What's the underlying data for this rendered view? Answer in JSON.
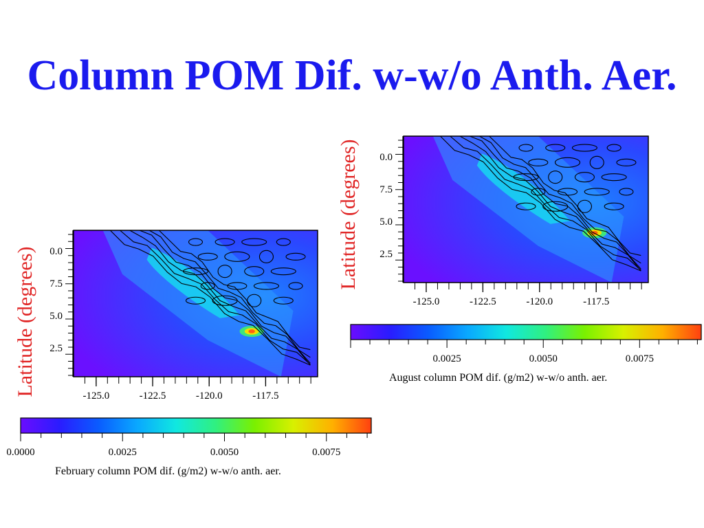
{
  "slide": {
    "title": "Column POM Dif. w-w/o Anth. Aer."
  },
  "colors": {
    "title": "#1a1aee",
    "axis_label": "#e02424"
  },
  "chart_data": [
    {
      "type": "heatmap",
      "name": "february",
      "ylabel": "Latitude (degrees)",
      "xlabel": "",
      "x_ticks": [
        "-125.0",
        "-122.5",
        "-120.0",
        "-117.5"
      ],
      "x_tick_values": [
        -125.0,
        -122.5,
        -120.0,
        -117.5
      ],
      "y_ticks": [
        "0.0",
        "7.5",
        "5.0",
        "2.5"
      ],
      "xlim": [
        -126.0,
        -115.2
      ],
      "colorbar": {
        "label": "February column POM dif. (g/m2) w-w/o anth. aer.",
        "tick_labels": [
          "0.0000",
          "0.0025",
          "0.0050",
          "0.0075"
        ],
        "tick_values": [
          0.0,
          0.0025,
          0.005,
          0.0075
        ],
        "range": [
          0.0,
          0.0086
        ],
        "colormap": [
          "#6a0dff",
          "#2a1cff",
          "#0a5cff",
          "#0aa8ff",
          "#10e8e0",
          "#30f080",
          "#7af000",
          "#d8f000",
          "#ffb000",
          "#ff4010"
        ]
      },
      "max_value_approx": 0.0075
    },
    {
      "type": "heatmap",
      "name": "august",
      "ylabel": "Latitude (degrees)",
      "xlabel": "",
      "x_ticks": [
        "-125.0",
        "-122.5",
        "-120.0",
        "-117.5"
      ],
      "x_tick_values": [
        -125.0,
        -122.5,
        -120.0,
        -117.5
      ],
      "y_ticks": [
        "0.0",
        "7.5",
        "5.0",
        "2.5"
      ],
      "xlim": [
        -126.0,
        -115.2
      ],
      "colorbar": {
        "label": "August column POM dif. (g/m2) w-w/o anth. aer.",
        "tick_labels": [
          "0.0025",
          "0.0050",
          "0.0075"
        ],
        "tick_values": [
          0.0025,
          0.005,
          0.0075
        ],
        "range": [
          0.0,
          0.0091
        ],
        "colormap": [
          "#6a0dff",
          "#2a1cff",
          "#0a5cff",
          "#0aa8ff",
          "#10e8e0",
          "#30f080",
          "#7af000",
          "#d8f000",
          "#ffb000",
          "#ff4010"
        ]
      },
      "max_value_approx": 0.0085
    }
  ]
}
